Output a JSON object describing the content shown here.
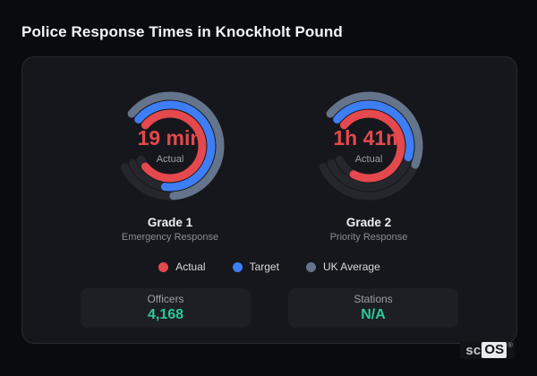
{
  "page_title": "Police Response Times in Knockholt Pound",
  "colors": {
    "actual": "#e5484d",
    "target": "#3e7ef5",
    "uk_average": "#64748b",
    "track": "#25272d",
    "stat_accent": "#2bc89d"
  },
  "chart_data": [
    {
      "type": "gauge",
      "name": "Grade 1",
      "subtitle": "Emergency Response",
      "center_value": "19 min",
      "center_label": "Actual",
      "start_angle_deg": 310,
      "track_sweep_deg": 295,
      "rings": [
        {
          "series": "UK Average",
          "color": "#64748b",
          "radius": 56,
          "sweep_deg": 226
        },
        {
          "series": "Target",
          "color": "#3e7ef5",
          "radius": 46,
          "sweep_deg": 237
        },
        {
          "series": "Actual",
          "color": "#e5484d",
          "radius": 36,
          "sweep_deg": 280
        }
      ]
    },
    {
      "type": "gauge",
      "name": "Grade 2",
      "subtitle": "Priority Response",
      "center_value": "1h 41m",
      "center_label": "Actual",
      "start_angle_deg": 310,
      "track_sweep_deg": 295,
      "rings": [
        {
          "series": "UK Average",
          "color": "#64748b",
          "radius": 56,
          "sweep_deg": 162
        },
        {
          "series": "Target",
          "color": "#3e7ef5",
          "radius": 46,
          "sweep_deg": 156
        },
        {
          "series": "Actual",
          "color": "#e5484d",
          "radius": 36,
          "sweep_deg": 258
        }
      ]
    }
  ],
  "legend": [
    {
      "label": "Actual",
      "color": "#e5484d"
    },
    {
      "label": "Target",
      "color": "#3e7ef5"
    },
    {
      "label": "UK Average",
      "color": "#64748b"
    }
  ],
  "stats": [
    {
      "label": "Officers",
      "value": "4,168"
    },
    {
      "label": "Stations",
      "value": "N/A"
    }
  ],
  "brand": {
    "prefix": "sc",
    "suffix": "OS",
    "registered": "®"
  }
}
